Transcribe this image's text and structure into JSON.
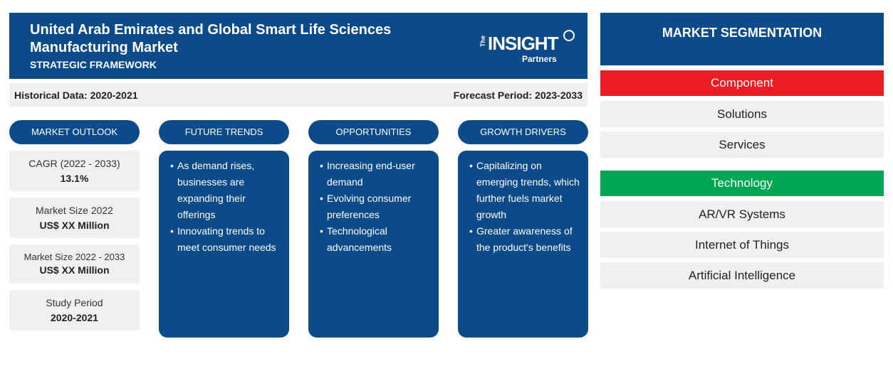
{
  "header": {
    "title": "United Arab Emirates and Global Smart Life Sciences Manufacturing Market",
    "subtitle": "STRATEGIC FRAMEWORK",
    "logo": {
      "the": "The",
      "word": "INSIGHT",
      "partners": "Partners"
    }
  },
  "periods": {
    "historical": "Historical Data: 2020-2021",
    "forecast": "Forecast Period: 2023-2033"
  },
  "columns": {
    "outlook": "MARKET OUTLOOK",
    "trends": "FUTURE TRENDS",
    "opportunities": "OPPORTUNITIES",
    "drivers": "GROWTH DRIVERS"
  },
  "outlook": [
    {
      "label": "CAGR (2022 - 2033)",
      "value": "13.1%"
    },
    {
      "label": "Market Size 2022",
      "value": "US$ XX Million"
    },
    {
      "label": "Market Size 2022 - 2033",
      "value": "US$ XX Million"
    },
    {
      "label": "Study Period",
      "value": "2020-2021"
    }
  ],
  "trends": [
    "As demand rises, businesses are expanding their offerings",
    "Innovating trends to meet consumer needs"
  ],
  "opportunities": [
    "Increasing end-user demand",
    "Evolving consumer preferences",
    "Technological advancements"
  ],
  "drivers": [
    "Capitalizing on emerging trends, which further fuels market growth",
    "Greater awareness of the product's benefits"
  ],
  "segmentation": {
    "title": "MARKET SEGMENTATION",
    "component": {
      "label": "Component",
      "color": "#ed1c24",
      "items": [
        "Solutions",
        "Services"
      ]
    },
    "technology": {
      "label": "Technology",
      "color": "#00a651",
      "items": [
        "AR/VR Systems",
        "Internet of Things",
        "Artificial Intelligence"
      ]
    }
  },
  "colors": {
    "primary": "#0d4a8a",
    "panel": "#f0f0f0"
  }
}
